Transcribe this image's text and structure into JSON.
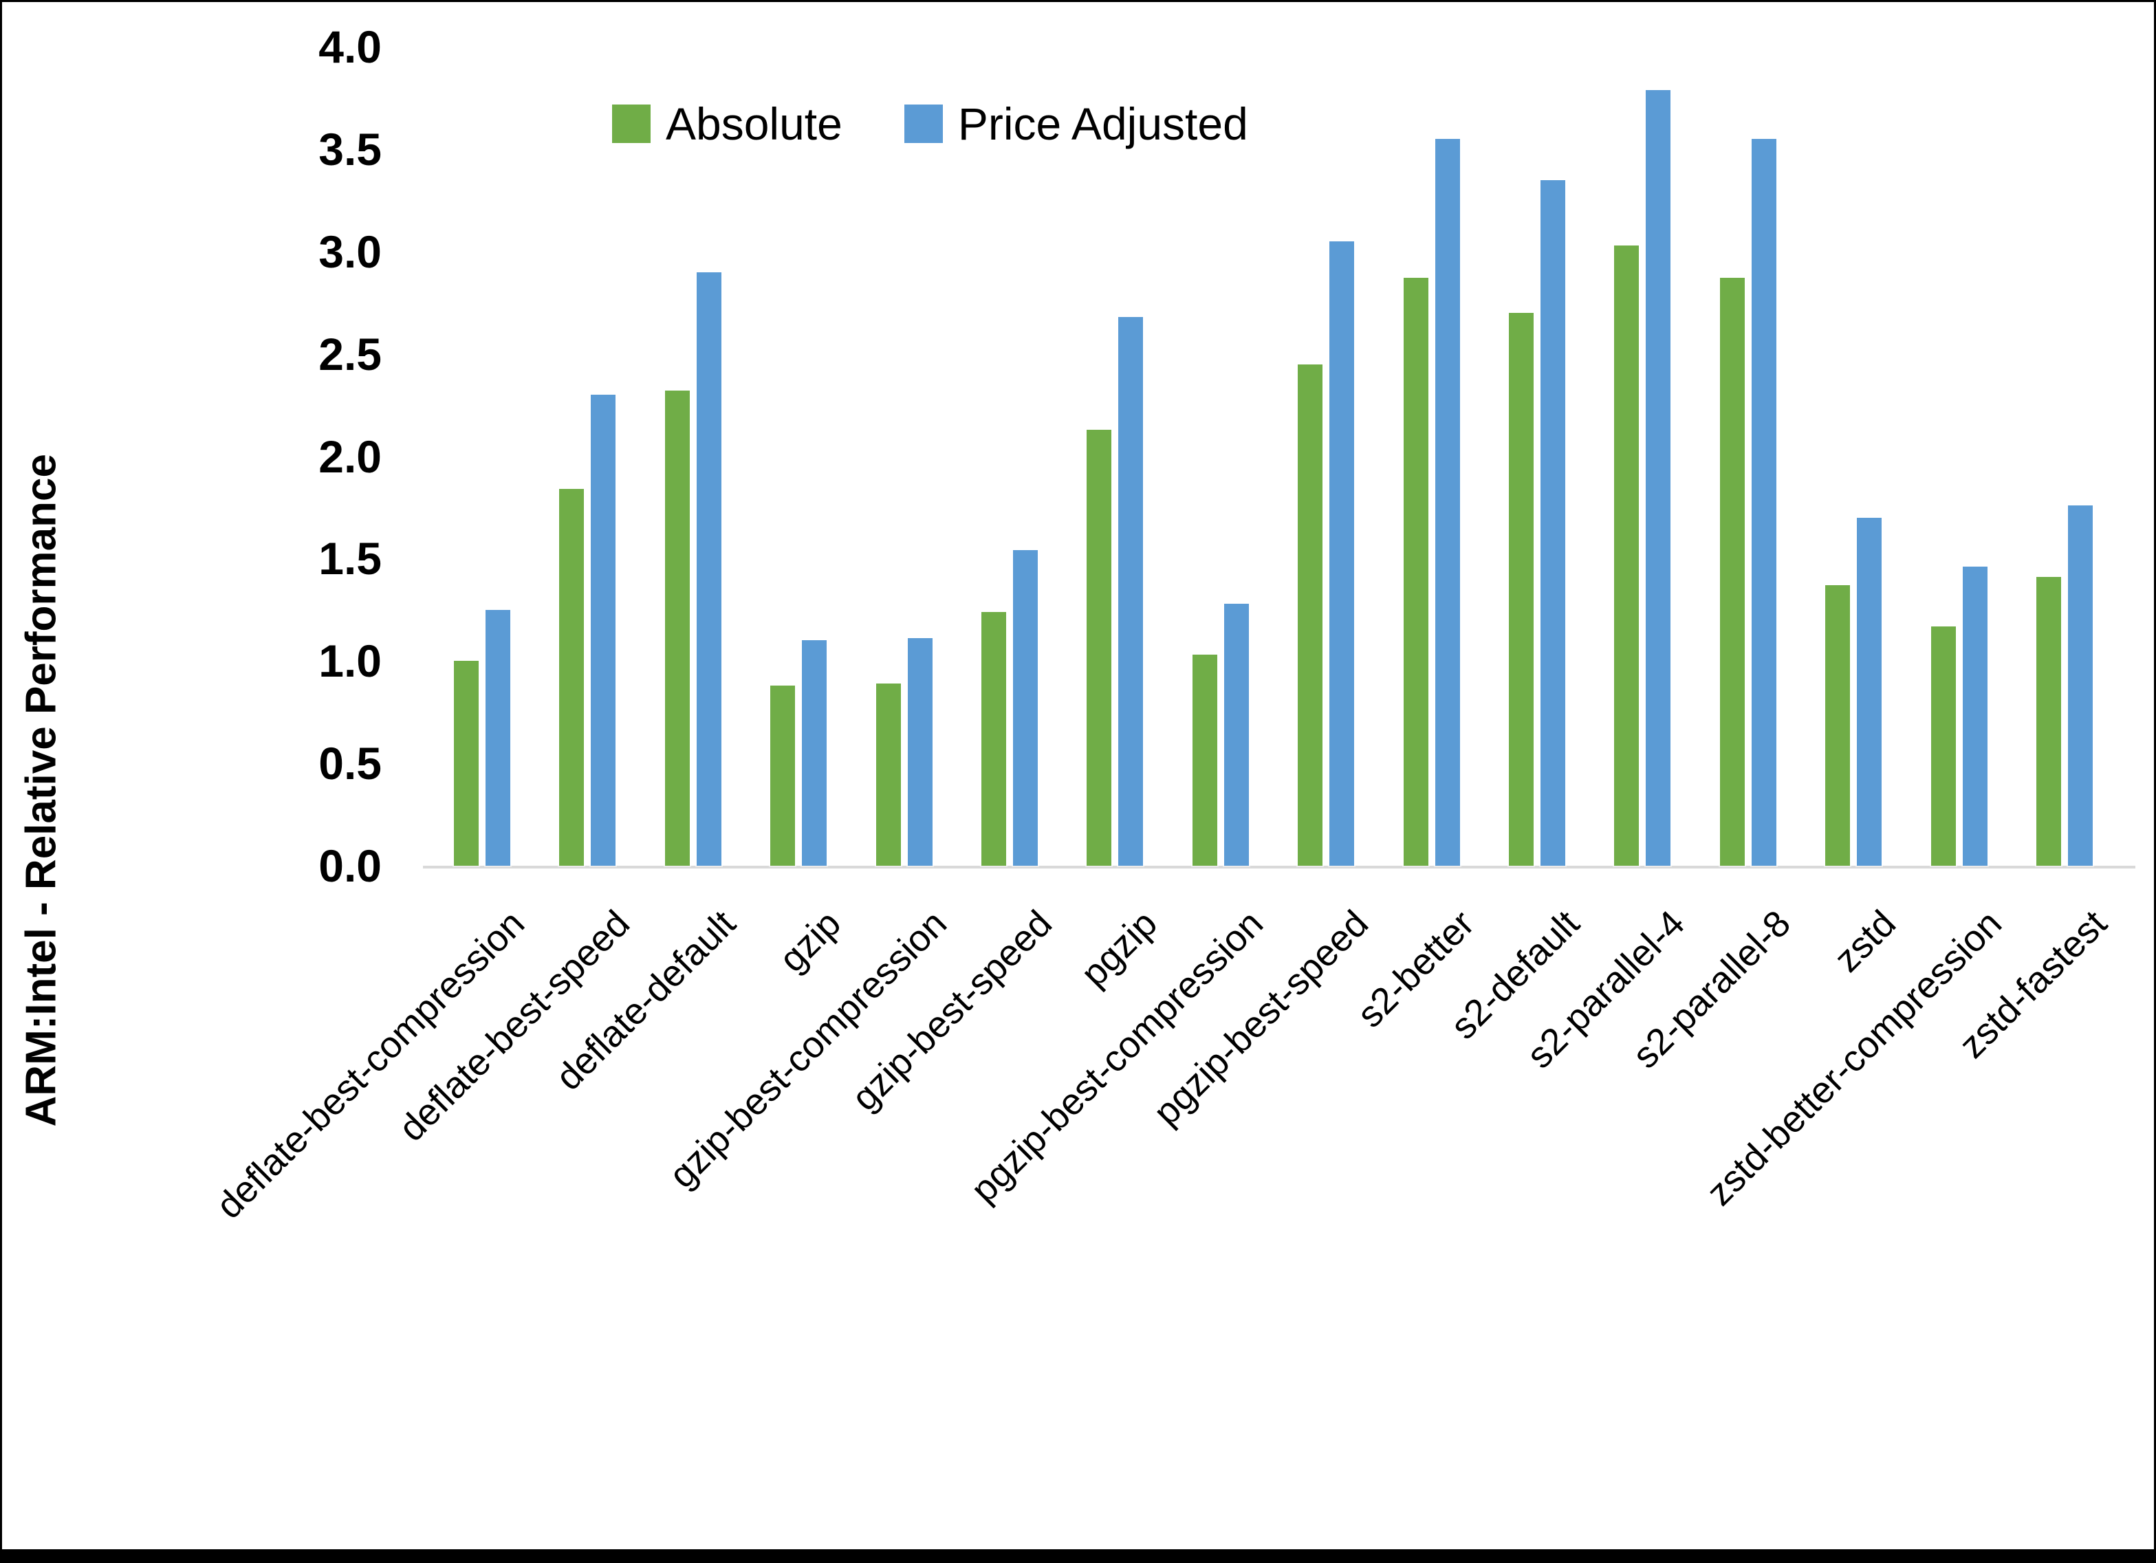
{
  "chart_data": {
    "type": "bar",
    "title": "",
    "xlabel": "",
    "ylabel": "ARM:Intel - Relative Performance",
    "ylim": [
      0.0,
      4.0
    ],
    "ytick_step": 0.5,
    "yticks": [
      "4.0",
      "3.5",
      "3.0",
      "2.5",
      "2.0",
      "1.5",
      "1.0",
      "0.5",
      "0.0"
    ],
    "grid": false,
    "legend_position": "top-center",
    "axis_line_color": "#d9d9d9",
    "categories": [
      "deflate-best-compression",
      "deflate-best-speed",
      "deflate-default",
      "gzip",
      "gzip-best-compression",
      "gzip-best-speed",
      "pgzip",
      "pgzip-best-compression",
      "pgzip-best-speed",
      "s2-better",
      "s2-default",
      "s2-parallel-4",
      "s2-parallel-8",
      "zstd",
      "zstd-better-compression",
      "zstd-fastest"
    ],
    "series": [
      {
        "name": "Absolute",
        "color": "#70AD47",
        "values": [
          1.0,
          1.84,
          2.32,
          0.88,
          0.89,
          1.24,
          2.13,
          1.03,
          2.45,
          2.87,
          2.7,
          3.03,
          2.87,
          1.37,
          1.17,
          1.41
        ]
      },
      {
        "name": "Price Adjusted",
        "color": "#5B9BD5",
        "values": [
          1.25,
          2.3,
          2.9,
          1.1,
          1.11,
          1.54,
          2.68,
          1.28,
          3.05,
          3.55,
          3.35,
          3.79,
          3.55,
          1.7,
          1.46,
          1.76
        ]
      }
    ]
  }
}
